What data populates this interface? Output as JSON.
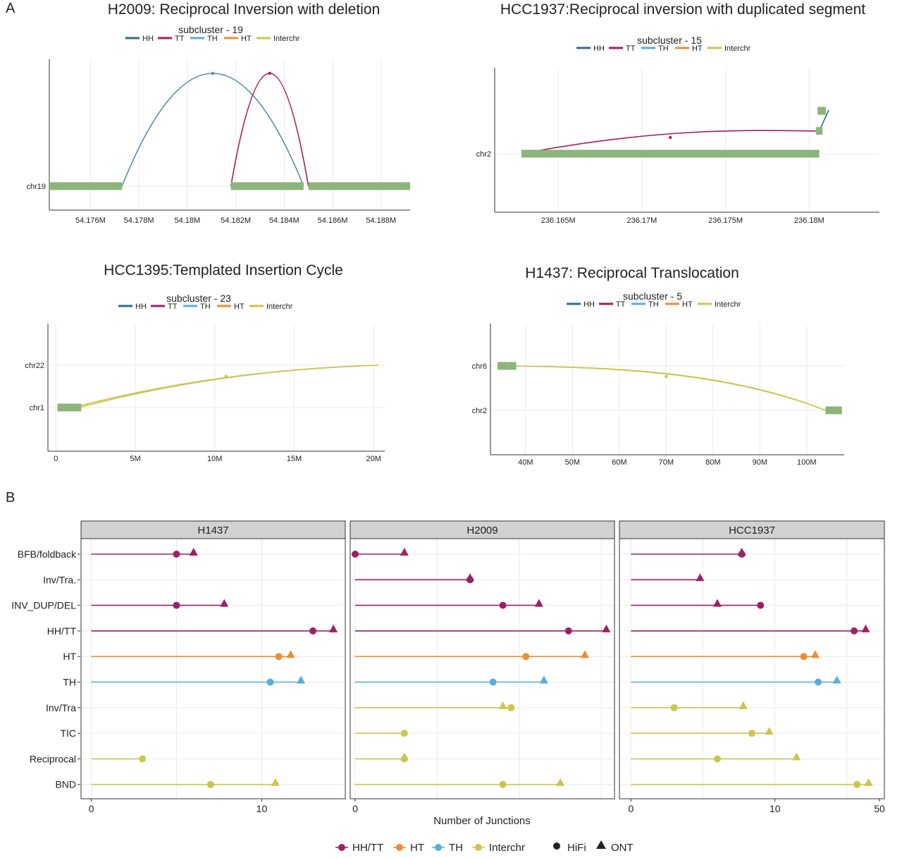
{
  "panel_labels": [
    "A",
    "B"
  ],
  "colors": {
    "HH": "#2a6f87",
    "TT": "#b0185c",
    "TH": "#55aee0",
    "HT": "#ee8c32",
    "Interchr": "#c9c64b",
    "HH/TT": "#9e2062",
    "segment": "#8db47a",
    "grid": "#ebebeb",
    "strip_bg": "#d2d2d2",
    "arc_HH_panel": "#5a8ea7"
  },
  "chart_data": [
    {
      "type": "line",
      "title": "H2009: Reciprocal Inversion with deletion",
      "legend_title": "subcluster - 19",
      "legend": [
        "HH",
        "TT",
        "TH",
        "HT",
        "Interchr"
      ],
      "chromosomes": [
        "chr19"
      ],
      "x_ticks": [
        54.176,
        54.178,
        54.18,
        54.182,
        54.184,
        54.186,
        54.188
      ],
      "x_tick_labels": [
        "54.176M",
        "54.178M",
        "54.18M",
        "54.182M",
        "54.184M",
        "54.186M",
        "54.188M"
      ],
      "xlim": [
        54.1743,
        54.1892
      ],
      "segments": [
        {
          "chr": "chr19",
          "start": 54.1743,
          "end": 54.1773
        },
        {
          "chr": "chr19",
          "start": 54.1818,
          "end": 54.1848
        },
        {
          "chr": "chr19",
          "start": 54.185,
          "end": 54.1892
        }
      ],
      "junctions": [
        {
          "type": "HH",
          "chr1": "chr19",
          "pos1": 54.1773,
          "chr2": "chr19",
          "pos2": 54.1848
        },
        {
          "type": "TT",
          "chr1": "chr19",
          "pos1": 54.1818,
          "chr2": "chr19",
          "pos2": 54.185
        }
      ]
    },
    {
      "type": "line",
      "title": "HCC1937:Reciprocal inversion with duplicated segment",
      "legend_title": "subcluster - 15",
      "legend": [
        "HH",
        "TT",
        "TH",
        "HT",
        "Interchr"
      ],
      "chromosomes": [
        "chr2"
      ],
      "x_ticks": [
        236.165,
        236.17,
        236.175,
        236.18
      ],
      "x_tick_labels": [
        "236.165M",
        "236.17M",
        "236.175M",
        "236.18M"
      ],
      "xlim": [
        236.1612,
        236.1842
      ],
      "segments": [
        {
          "chr": "chr2",
          "start": 236.1628,
          "end": 236.1806,
          "level": 0
        },
        {
          "chr": "chr2",
          "start": 236.1804,
          "end": 236.1808,
          "level": 0.85
        },
        {
          "chr": "chr2",
          "start": 236.1805,
          "end": 236.181,
          "level": 1.6
        }
      ],
      "junctions": [
        {
          "type": "TT",
          "chr1": "chr2",
          "pos1": 236.1628,
          "chr2": "chr2",
          "pos2": 236.1806
        },
        {
          "type": "HH",
          "chr1": "chr2",
          "pos1": 236.1806,
          "chr2": "chr2",
          "pos2": 236.181
        }
      ]
    },
    {
      "type": "line",
      "title": "HCC1395:Templated Insertion Cycle",
      "legend_title": "subcluster - 23",
      "legend": [
        "HH",
        "TT",
        "TH",
        "HT",
        "Interchr"
      ],
      "chromosomes": [
        "chr1",
        "chr22"
      ],
      "x_ticks": [
        0,
        5,
        10,
        15,
        20
      ],
      "x_tick_labels": [
        "0",
        "5M",
        "10M",
        "15M",
        "20M"
      ],
      "xlim": [
        -0.5,
        20.7
      ],
      "segments": [
        {
          "chr": "chr1",
          "start": 0.1,
          "end": 1.1
        },
        {
          "chr": "chr1",
          "start": 1.1,
          "end": 1.6
        }
      ],
      "junctions": [
        {
          "type": "Interchr",
          "chr1": "chr1",
          "pos1": 1.1,
          "chr2": "chr22",
          "pos2": 20.3
        },
        {
          "type": "Interchr",
          "chr1": "chr1",
          "pos1": 1.5,
          "chr2": "chr22",
          "pos2": 20.3
        }
      ]
    },
    {
      "type": "line",
      "title": "H1437: Reciprocal Translocation",
      "legend_title": "subcluster - 5",
      "legend": [
        "HH",
        "TT",
        "TH",
        "HT",
        "Interchr"
      ],
      "chromosomes": [
        "chr2",
        "chr6"
      ],
      "x_ticks": [
        40,
        50,
        60,
        70,
        80,
        90,
        100
      ],
      "x_tick_labels": [
        "40M",
        "50M",
        "60M",
        "70M",
        "80M",
        "90M",
        "100M"
      ],
      "xlim": [
        32.5,
        108
      ],
      "segments": [
        {
          "chr": "chr6",
          "start": 34,
          "end": 36
        },
        {
          "chr": "chr6",
          "start": 36,
          "end": 38
        },
        {
          "chr": "chr2",
          "start": 104,
          "end": 107.5
        }
      ],
      "junctions": [
        {
          "type": "Interchr",
          "chr1": "chr6",
          "pos1": 36,
          "chr2": "chr2",
          "pos2": 104
        },
        {
          "type": "Interchr",
          "chr1": "chr6",
          "pos1": 37.5,
          "chr2": "chr2",
          "pos2": 104
        }
      ]
    },
    {
      "type": "scatter",
      "subtype": "lollipop",
      "xlabel": "Number of Junctions",
      "categories": [
        "BFB/foldback",
        "Inv/Tra.",
        "INV_DUP/DEL",
        "HH/TT",
        "HT",
        "TH",
        "Inv/Tra",
        "TIC",
        "Reciprocal",
        "BND"
      ],
      "category_color_group": [
        "HH/TT",
        "HH/TT",
        "HH/TT",
        "HH/TT",
        "HT",
        "TH",
        "Interchr",
        "Interchr",
        "Interchr",
        "Interchr"
      ],
      "facets": [
        {
          "name": "H1437",
          "x_ticks": [
            0,
            10
          ],
          "x_tick_labels": [
            "0",
            "10"
          ],
          "xlim": [
            -0.6,
            14.9
          ],
          "hifi": [
            5,
            null,
            5,
            13,
            11,
            10.5,
            null,
            null,
            3,
            7
          ],
          "ont": [
            6,
            null,
            7.8,
            14.2,
            11.7,
            12.3,
            null,
            null,
            null,
            10.8
          ]
        },
        {
          "name": "H2009",
          "x_ticks": [
            0
          ],
          "x_tick_labels": [
            "0"
          ],
          "xlim": [
            -0.3,
            15.8
          ],
          "hifi": [
            0,
            7,
            9,
            13,
            10.4,
            8.4,
            9.5,
            3,
            3,
            9
          ],
          "ont": [
            3,
            7,
            11.2,
            15.3,
            14,
            11.5,
            9,
            null,
            3,
            12.5
          ]
        },
        {
          "name": "HCC1937",
          "x_ticks": [
            0,
            10,
            50
          ],
          "x_tick_labels": [
            "0",
            "10",
            "50"
          ],
          "xlim": [
            -0.8,
            17.6
          ],
          "hifi": [
            7.7,
            null,
            9,
            15.5,
            12,
            13,
            3,
            8.4,
            6,
            15.7
          ],
          "ont": [
            7.7,
            4.8,
            6,
            16.3,
            12.8,
            14.3,
            7.8,
            9.6,
            11.5,
            16.5
          ]
        }
      ],
      "legend": {
        "colors": [
          "HH/TT",
          "HT",
          "TH",
          "Interchr"
        ],
        "shapes": [
          {
            "label": "HiFi",
            "shape": "circle"
          },
          {
            "label": "ONT",
            "shape": "triangle"
          }
        ]
      }
    }
  ]
}
